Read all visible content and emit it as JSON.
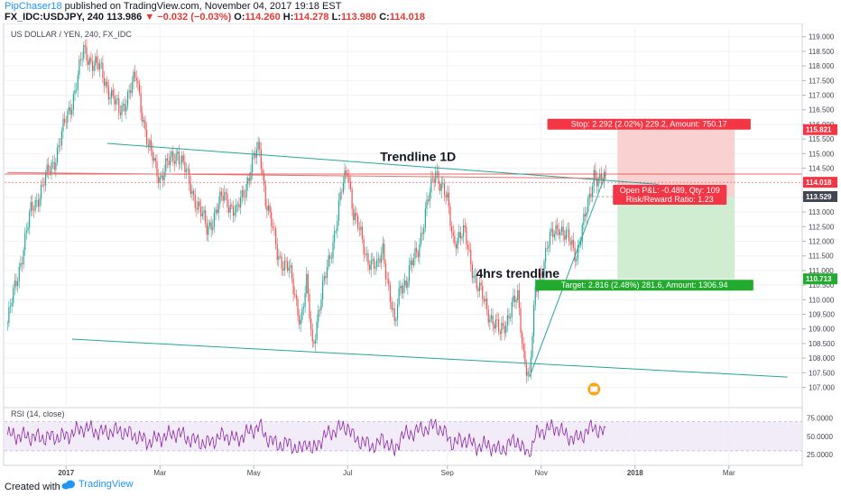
{
  "header": {
    "author": "PipChaser18",
    "published_text": "published on TradingView.com, November 04, 2017 19:18 EST",
    "symbol": "FX_IDC:USDJPY, 240",
    "last": "113.986",
    "change": "−0.032 (−0.03%)",
    "open_label": "O:",
    "open": "114.260",
    "high_label": "H:",
    "high": "114.278",
    "low_label": "L:",
    "low": "113.980",
    "close_label": "C:",
    "close": "114.018"
  },
  "footer": {
    "created_with": "Created with",
    "brand": "TradingView"
  },
  "colors": {
    "up": "#26a69a",
    "down": "#ef5350",
    "trend": "#26a69a",
    "rsi": "#8e24aa",
    "stop_zone": "#f8c9c9",
    "target_zone": "#c8eac9",
    "price_line": "#e53935",
    "tag_red": "#f23645",
    "tag_green": "#22ab2e"
  },
  "chart_data": [
    {
      "type": "candlestick",
      "title": "US DOLLAR / YEN, 240, FX_IDC",
      "x_tick_labels": [
        "2017",
        "Mar",
        "May",
        "Jul",
        "Sep",
        "Nov",
        "2018",
        "Mar"
      ],
      "y_ticks": [
        "119.000",
        "118.500",
        "118.000",
        "117.500",
        "117.000",
        "116.500",
        "116.000",
        "115.500",
        "115.000",
        "114.500",
        "114.000",
        "113.500",
        "113.000",
        "112.500",
        "112.000",
        "111.500",
        "111.000",
        "110.500",
        "110.000",
        "109.500",
        "109.000",
        "108.500",
        "108.000",
        "107.500",
        "107.000"
      ],
      "ylim": [
        106.8,
        119.3
      ],
      "price_path": [
        [
          0,
          109.2
        ],
        [
          4,
          113.0
        ],
        [
          8,
          114.8
        ],
        [
          11,
          116.8
        ],
        [
          13,
          118.5
        ],
        [
          16,
          117.8
        ],
        [
          19,
          116.4
        ],
        [
          22,
          117.6
        ],
        [
          24,
          115.2
        ],
        [
          26,
          114.2
        ],
        [
          29,
          115.1
        ],
        [
          31,
          114.0
        ],
        [
          34,
          112.4
        ],
        [
          37,
          113.6
        ],
        [
          39,
          112.9
        ],
        [
          42,
          114.8
        ],
        [
          43,
          115.2
        ],
        [
          44,
          113.5
        ],
        [
          46,
          111.6
        ],
        [
          48,
          111.0
        ],
        [
          50,
          109.3
        ],
        [
          51,
          110.5
        ],
        [
          52,
          108.4
        ],
        [
          53,
          109.6
        ],
        [
          55,
          111.5
        ],
        [
          57,
          113.7
        ],
        [
          58,
          114.5
        ],
        [
          59,
          113.0
        ],
        [
          61,
          111.6
        ],
        [
          63,
          111.0
        ],
        [
          64,
          111.8
        ],
        [
          66,
          109.0
        ],
        [
          67,
          110.6
        ],
        [
          68,
          110.6
        ],
        [
          70,
          111.8
        ],
        [
          72,
          113.6
        ],
        [
          73,
          114.5
        ],
        [
          75,
          113.3
        ],
        [
          76,
          112.1
        ],
        [
          78,
          112.2
        ],
        [
          80,
          110.5
        ],
        [
          82,
          109.6
        ],
        [
          84,
          108.8
        ],
        [
          86,
          109.8
        ],
        [
          87,
          110.0
        ],
        [
          88,
          108.2
        ],
        [
          89,
          107.3
        ],
        [
          90,
          110.2
        ],
        [
          92,
          111.8
        ],
        [
          94,
          112.6
        ],
        [
          95,
          112.2
        ],
        [
          97,
          111.6
        ],
        [
          99,
          113.2
        ],
        [
          100,
          114.4
        ],
        [
          101,
          114.0
        ],
        [
          102,
          114.1
        ]
      ],
      "x_total_bars": 136,
      "x_tick_bars": [
        10,
        26,
        42,
        58,
        75,
        91,
        107,
        123
      ],
      "last_price": "114.018",
      "marked_prices": [
        {
          "label": "115.821",
          "value": 115.821,
          "color": "#f23645"
        },
        {
          "label": "114.018",
          "value": 114.018,
          "color": "#f23645"
        },
        {
          "label": "113.529",
          "value": 113.529,
          "color": "#434651"
        },
        {
          "label": "110.713",
          "value": 110.713,
          "color": "#22ab2e"
        }
      ],
      "horizontal_line": 114.3,
      "trendlines": [
        {
          "x1": 17,
          "y1": 115.35,
          "x2": 111,
          "y2": 113.95
        },
        {
          "x1": 11,
          "y1": 108.65,
          "x2": 133,
          "y2": 107.35
        },
        {
          "x1": 89,
          "y1": 107.35,
          "x2": 102,
          "y2": 114.3
        },
        {
          "x1": 0,
          "y1": 114.35,
          "x2": 102,
          "y2": 114.15
        }
      ],
      "annotations": [
        {
          "text": "Trendline 1D",
          "bar": 70,
          "value": 114.75
        },
        {
          "text": "4hrs trendline",
          "bar": 87,
          "value": 110.75
        }
      ],
      "position": {
        "entry": 113.529,
        "stop": 115.821,
        "target": 110.713,
        "bar_start": 104,
        "bar_end": 124,
        "stop_text": "Stop: 2.292 (2.02%) 229.2, Amount: 750.17",
        "pnl_text": "Open P&L: -0.489, Qty: 109",
        "rr_text": "Risk/Reward Ratio: 1.23",
        "target_text": "Target: 2.816 (2.48%) 281.6, Amount: 1306.94"
      }
    },
    {
      "type": "line",
      "title": "RSI (14, close)",
      "y_ticks": [
        "75.0000",
        "50.0000",
        "25.0000"
      ],
      "ylim": [
        20,
        82
      ],
      "band": [
        30,
        70
      ],
      "levels": [
        [
          0,
          52
        ],
        [
          6,
          48
        ],
        [
          10,
          50
        ],
        [
          13,
          62
        ],
        [
          16,
          55
        ],
        [
          19,
          58
        ],
        [
          22,
          50
        ],
        [
          24,
          42
        ],
        [
          26,
          48
        ],
        [
          29,
          55
        ],
        [
          31,
          46
        ],
        [
          34,
          40
        ],
        [
          37,
          52
        ],
        [
          39,
          45
        ],
        [
          42,
          60
        ],
        [
          43,
          64
        ],
        [
          44,
          50
        ],
        [
          46,
          38
        ],
        [
          48,
          40
        ],
        [
          50,
          30
        ],
        [
          51,
          45
        ],
        [
          52,
          28
        ],
        [
          53,
          42
        ],
        [
          55,
          55
        ],
        [
          57,
          62
        ],
        [
          58,
          64
        ],
        [
          59,
          48
        ],
        [
          61,
          40
        ],
        [
          63,
          36
        ],
        [
          64,
          48
        ],
        [
          66,
          28
        ],
        [
          67,
          50
        ],
        [
          68,
          52
        ],
        [
          70,
          58
        ],
        [
          72,
          62
        ],
        [
          73,
          66
        ],
        [
          75,
          50
        ],
        [
          76,
          40
        ],
        [
          78,
          46
        ],
        [
          80,
          36
        ],
        [
          82,
          38
        ],
        [
          84,
          30
        ],
        [
          86,
          42
        ],
        [
          87,
          44
        ],
        [
          88,
          30
        ],
        [
          89,
          24
        ],
        [
          90,
          52
        ],
        [
          92,
          60
        ],
        [
          94,
          62
        ],
        [
          95,
          52
        ],
        [
          97,
          46
        ],
        [
          99,
          58
        ],
        [
          100,
          64
        ],
        [
          101,
          56
        ],
        [
          102,
          55
        ]
      ]
    }
  ]
}
